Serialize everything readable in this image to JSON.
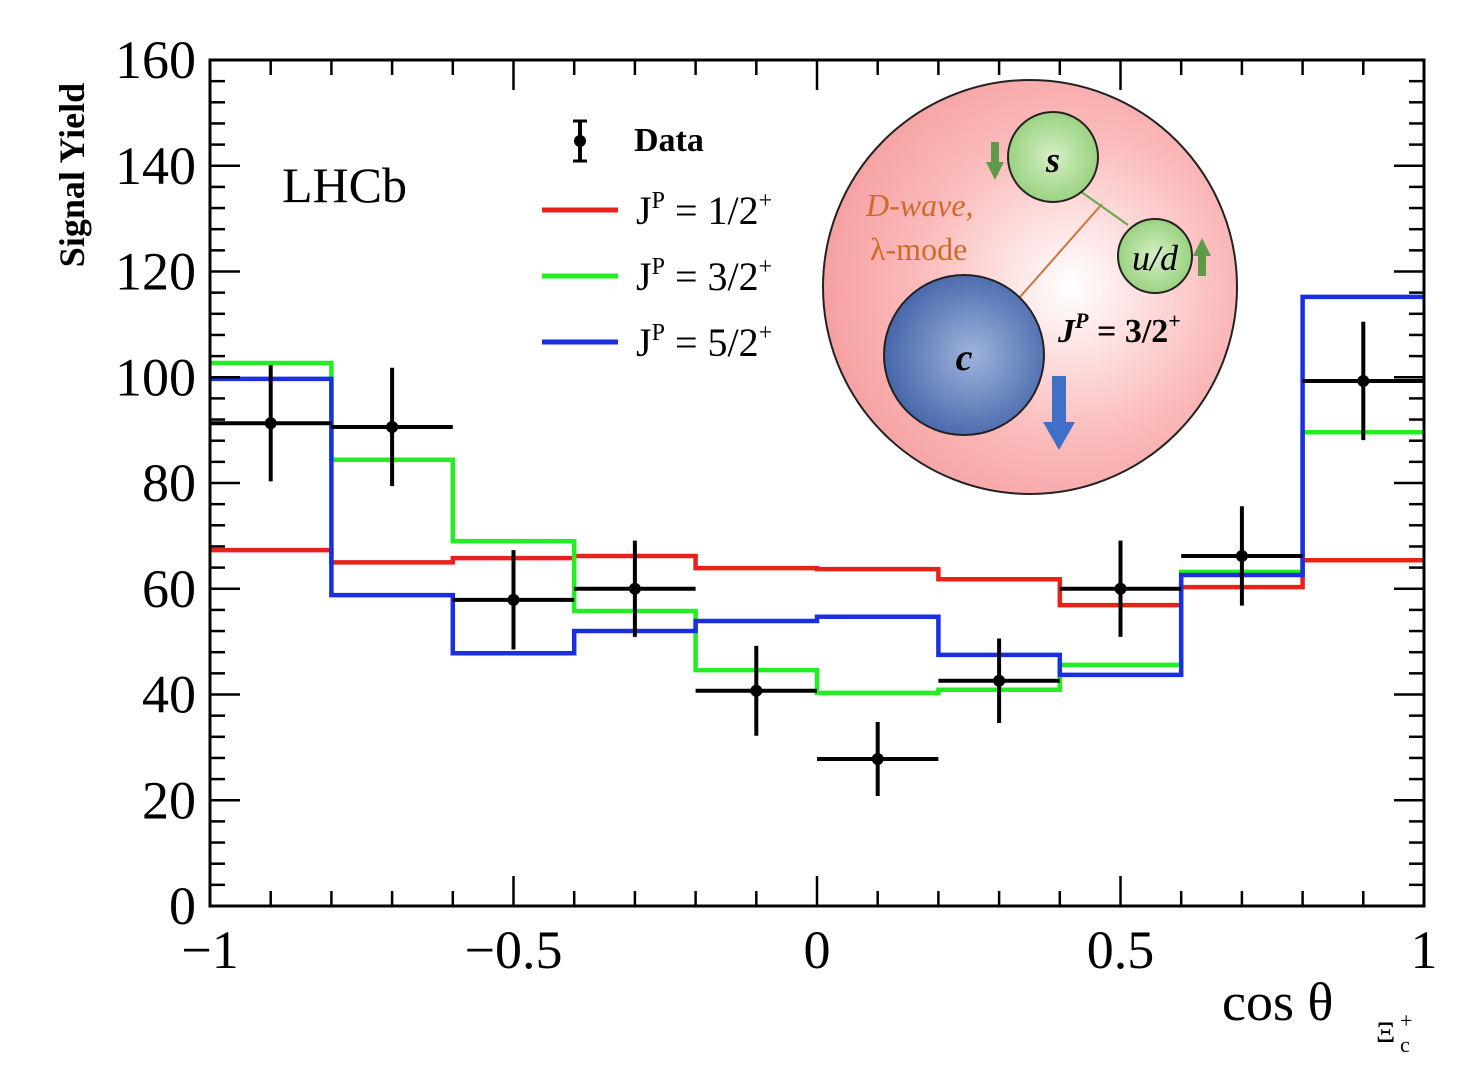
{
  "chart_data": {
    "type": "histogram",
    "title": "",
    "xlabel": "cos θ",
    "xlabel_subscript": "Ξ",
    "xlabel_subscript_sub": "c",
    "xlabel_subscript_sup": "+",
    "ylabel": "Signal Yield",
    "xlim": [
      -1,
      1
    ],
    "ylim": [
      0,
      160
    ],
    "xticks": [
      -1,
      -0.5,
      0,
      0.5,
      1
    ],
    "xtick_labels": [
      "−1",
      "−0.5",
      "0",
      "0.5",
      "1"
    ],
    "yticks": [
      0,
      20,
      40,
      60,
      80,
      100,
      120,
      140,
      160
    ],
    "ytick_labels": [
      "0",
      "20",
      "40",
      "60",
      "80",
      "100",
      "120",
      "140",
      "160"
    ],
    "bin_edges": [
      -1,
      -0.8,
      -0.6,
      -0.4,
      -0.2,
      0,
      0.2,
      0.4,
      0.6,
      0.8,
      1
    ],
    "data": {
      "name": "Data",
      "x": [
        -0.9,
        -0.7,
        -0.5,
        -0.3,
        -0.1,
        0.1,
        0.3,
        0.5,
        0.7,
        0.9
      ],
      "y": [
        91.3,
        90.6,
        57.9,
        60.0,
        40.7,
        27.8,
        42.6,
        60.0,
        66.2,
        99.3
      ],
      "yerr": [
        11.0,
        11.2,
        9.4,
        9.1,
        8.5,
        7.0,
        8.0,
        9.1,
        9.4,
        11.2
      ],
      "xerr": 0.1,
      "color": "#000000"
    },
    "series": [
      {
        "name": "J^P = 1/2^+",
        "label_main": "J",
        "label_sup": "P",
        "label_rest": " = 1/2",
        "label_sup2": "+",
        "color": "#e8211b",
        "values": [
          67.3,
          65.0,
          65.8,
          66.2,
          63.9,
          63.7,
          61.8,
          56.9,
          60.3,
          65.4
        ]
      },
      {
        "name": "J^P = 3/2^+",
        "label_main": "J",
        "label_sup": "P",
        "label_rest": " = 3/2",
        "label_sup2": "+",
        "color": "#22ee22",
        "values": [
          102.7,
          84.4,
          69.0,
          55.8,
          44.6,
          40.3,
          40.9,
          45.6,
          63.2,
          89.6
        ]
      },
      {
        "name": "J^P = 5/2^+",
        "label_main": "J",
        "label_sup": "P",
        "label_rest": " = 5/2",
        "label_sup2": "+",
        "color": "#1a2fe0",
        "values": [
          99.7,
          58.8,
          47.8,
          52.0,
          53.9,
          54.7,
          47.5,
          43.7,
          62.6,
          115.2
        ]
      }
    ],
    "legend_placement": "top-center",
    "grid": false,
    "annotations": {
      "experiment": "LHCb",
      "inset": {
        "quark_s": "s",
        "quark_ud": "u/d",
        "quark_c": "c",
        "mode_line1": "D-wave,",
        "mode_line2": "λ-mode",
        "jp_main": "J",
        "jp_sup": "P",
        "jp_rest": " = 3/2",
        "jp_sup2": "+"
      }
    }
  }
}
